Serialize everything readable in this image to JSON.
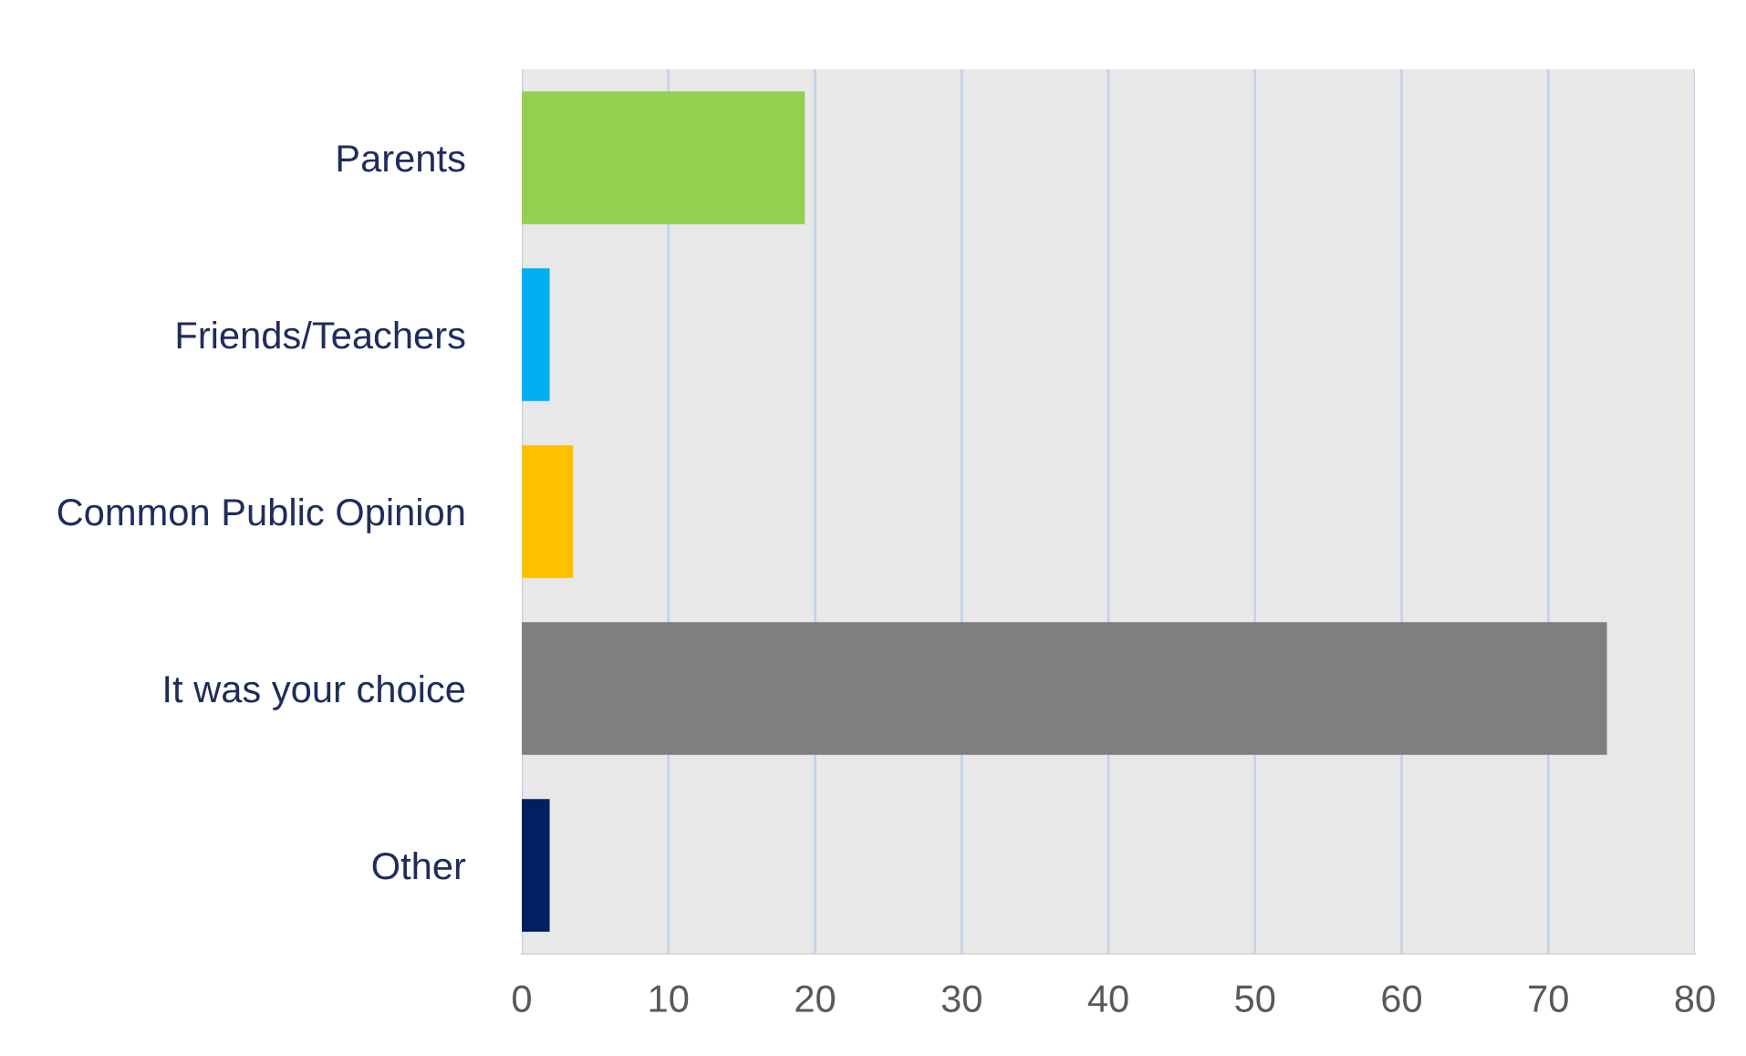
{
  "chart_data": {
    "type": "bar",
    "orientation": "horizontal",
    "categories": [
      "Parents",
      "Friends/Teachers",
      "Common Public Opinion",
      "It was your choice",
      "Other"
    ],
    "values": [
      19.3,
      1.9,
      3.5,
      74.0,
      1.9
    ],
    "colors": [
      "#92d050",
      "#00b0f0",
      "#ffc000",
      "#7f7f7f",
      "#002060"
    ],
    "xlim": [
      0,
      80
    ],
    "xticks": [
      0,
      10,
      20,
      30,
      40,
      50,
      60,
      70,
      80
    ],
    "grid": "x"
  }
}
